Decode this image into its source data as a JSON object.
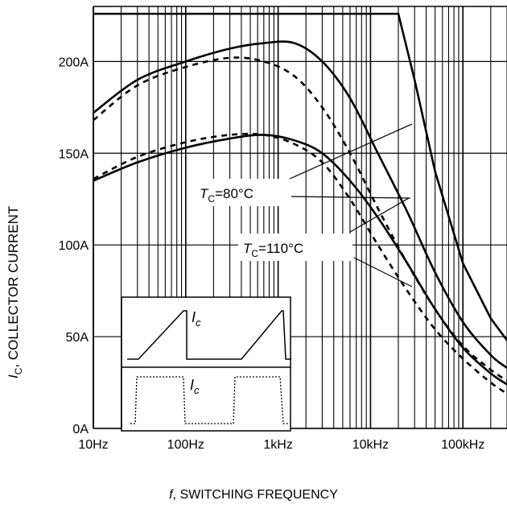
{
  "chart_data": {
    "type": "line",
    "xscale": "log",
    "x_unit": "Hz",
    "xlim": [
      10,
      300000
    ],
    "ylim": [
      0,
      230
    ],
    "grid": true,
    "xticks": [
      {
        "value": 10,
        "label": "10Hz"
      },
      {
        "value": 100,
        "label": "100Hz"
      },
      {
        "value": 1000,
        "label": "1kHz"
      },
      {
        "value": 10000,
        "label": "10kHz"
      },
      {
        "value": 100000,
        "label": "100kHz"
      }
    ],
    "yticks": [
      {
        "value": 0,
        "label": "0A"
      },
      {
        "value": 50,
        "label": "50A"
      },
      {
        "value": 100,
        "label": "100A"
      },
      {
        "value": 150,
        "label": "150A"
      },
      {
        "value": 200,
        "label": "200A"
      }
    ],
    "ylabel": {
      "symbol": "I",
      "subscript": "C",
      "text": ", COLLECTOR CURRENT"
    },
    "xlabel": {
      "symbol": "f",
      "text": ", SWITCHING FREQUENCY"
    },
    "series": [
      {
        "style": "solid",
        "points": [
          [
            10,
            226
          ],
          [
            20000,
            226
          ],
          [
            30000,
            190
          ],
          [
            50000,
            140
          ],
          [
            100000,
            90
          ],
          [
            200000,
            60
          ],
          [
            300000,
            48
          ]
        ]
      },
      {
        "style": "solid",
        "points": [
          [
            10,
            172
          ],
          [
            30,
            190
          ],
          [
            100,
            200
          ],
          [
            300,
            207
          ],
          [
            700,
            210
          ],
          [
            1500,
            210
          ],
          [
            3000,
            200
          ],
          [
            6000,
            180
          ],
          [
            12000,
            150
          ],
          [
            25000,
            118
          ],
          [
            50000,
            85
          ],
          [
            100000,
            58
          ],
          [
            200000,
            40
          ],
          [
            300000,
            33
          ]
        ]
      },
      {
        "style": "dashed",
        "points": [
          [
            10,
            168
          ],
          [
            30,
            187
          ],
          [
            100,
            197
          ],
          [
            300,
            202
          ],
          [
            700,
            200
          ],
          [
            1500,
            192
          ],
          [
            3000,
            175
          ],
          [
            6000,
            150
          ],
          [
            12000,
            120
          ],
          [
            25000,
            90
          ],
          [
            50000,
            65
          ],
          [
            100000,
            45
          ],
          [
            200000,
            32
          ],
          [
            300000,
            26
          ]
        ]
      },
      {
        "style": "solid",
        "points": [
          [
            10,
            135
          ],
          [
            30,
            145
          ],
          [
            100,
            153
          ],
          [
            300,
            158
          ],
          [
            700,
            160
          ],
          [
            1500,
            157
          ],
          [
            3000,
            150
          ],
          [
            6000,
            135
          ],
          [
            12000,
            115
          ],
          [
            25000,
            90
          ],
          [
            50000,
            65
          ],
          [
            100000,
            44
          ],
          [
            200000,
            30
          ],
          [
            300000,
            24
          ]
        ]
      },
      {
        "style": "dashed",
        "points": [
          [
            10,
            136
          ],
          [
            30,
            148
          ],
          [
            100,
            156
          ],
          [
            300,
            160
          ],
          [
            700,
            160
          ],
          [
            1500,
            155
          ],
          [
            3000,
            145
          ],
          [
            6000,
            125
          ],
          [
            12000,
            100
          ],
          [
            25000,
            75
          ],
          [
            50000,
            54
          ],
          [
            100000,
            38
          ],
          [
            200000,
            25
          ],
          [
            300000,
            19
          ]
        ]
      }
    ],
    "annotations": [
      {
        "symbol": "T",
        "subscript": "C",
        "text": "=80°C"
      },
      {
        "symbol": "T",
        "subscript": "C",
        "text": "=110°C"
      }
    ],
    "inset": {
      "top_label": {
        "symbol": "I",
        "subscript": "c"
      },
      "bottom_label": {
        "symbol": "I",
        "subscript": "c"
      }
    }
  }
}
